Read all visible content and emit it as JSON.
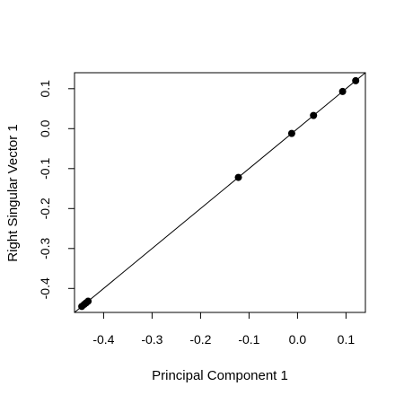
{
  "chart_data": {
    "type": "scatter",
    "title": "",
    "xlabel": "Principal Component 1",
    "ylabel": "Right Singular Vector 1",
    "xlim": [
      -0.46,
      0.14
    ],
    "ylim": [
      -0.46,
      0.14
    ],
    "x_ticks": [
      -0.4,
      -0.3,
      -0.2,
      -0.1,
      0.0,
      0.1
    ],
    "y_ticks": [
      -0.4,
      -0.3,
      -0.2,
      -0.1,
      0.0,
      0.1
    ],
    "x_tick_labels": [
      "-0.4",
      "-0.3",
      "-0.2",
      "-0.1",
      "0.0",
      "0.1"
    ],
    "y_tick_labels": [
      "-0.4",
      "-0.3",
      "-0.2",
      "-0.1",
      "0.0",
      "0.1"
    ],
    "grid": false,
    "reference_line": {
      "type": "identity",
      "slope": 1,
      "intercept": 0
    },
    "points": [
      {
        "x": -0.445,
        "y": -0.445
      },
      {
        "x": -0.44,
        "y": -0.44
      },
      {
        "x": -0.436,
        "y": -0.436
      },
      {
        "x": -0.432,
        "y": -0.432
      },
      {
        "x": -0.122,
        "y": -0.122
      },
      {
        "x": -0.012,
        "y": -0.012
      },
      {
        "x": 0.033,
        "y": 0.033
      },
      {
        "x": 0.093,
        "y": 0.093
      },
      {
        "x": 0.12,
        "y": 0.12
      }
    ]
  }
}
